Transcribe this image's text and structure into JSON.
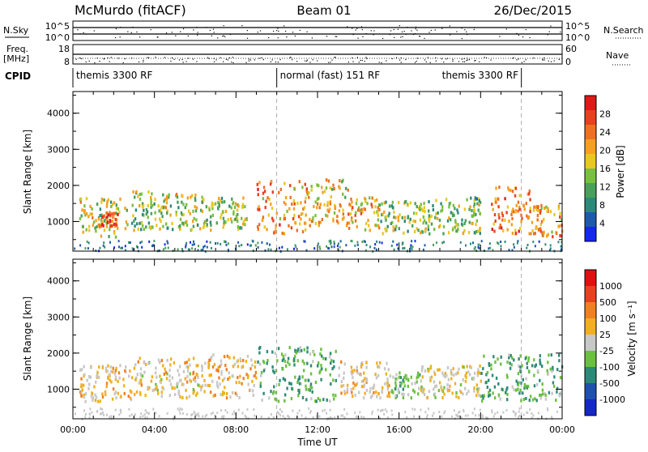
{
  "header": {
    "station": "McMurdo (fitACF)",
    "beam": "Beam 01",
    "date": "26/Dec/2015"
  },
  "top_panel": {
    "left_label": "N.Sky",
    "right_label": "N.Search",
    "tick_top": "10^5",
    "tick_bottom": "10^0",
    "right_tick_top": "10^5",
    "right_tick_bottom": "10^0"
  },
  "freq_panel": {
    "label_line1": "Freq.",
    "label_line2": "[MHz]",
    "tick_top": "18",
    "tick_bottom": "8",
    "right_label": "Nave",
    "right_tick_top": "60",
    "right_tick_bottom": "0"
  },
  "cpid": {
    "label": "CPID",
    "segments": [
      {
        "text": "themis 3300 RF",
        "start_hour": 0,
        "end_hour": 10
      },
      {
        "text": "normal (fast) 151 RF",
        "start_hour": 10,
        "end_hour": 22
      },
      {
        "text": "themis 3300 RF",
        "start_hour": 22,
        "end_hour": 24
      }
    ]
  },
  "colorbars": {
    "power": {
      "label": "Power [dB]",
      "ticks": [
        "4",
        "8",
        "12",
        "16",
        "20",
        "24",
        "28"
      ],
      "colors": [
        "#1428f0",
        "#1e5aaa",
        "#2e8a78",
        "#4aa05a",
        "#78c040",
        "#e8c820",
        "#f5a020",
        "#ee7020",
        "#e84020",
        "#e01818"
      ]
    },
    "velocity": {
      "label": "Velocity [m s⁻¹]",
      "ticks": [
        "1000",
        "500",
        "100",
        "25",
        "-25",
        "-100",
        "-500",
        "-1000"
      ],
      "colors": [
        "#1428c8",
        "#2050b0",
        "#2e8a78",
        "#6cc040",
        "#c8c8c8",
        "#f0b020",
        "#f08020",
        "#e84020",
        "#e01010"
      ]
    }
  },
  "chart_data": [
    {
      "type": "heatmap",
      "title": "",
      "xlabel": "",
      "ylabel": "Slant Range [km]",
      "xlim": [
        0,
        24
      ],
      "ylim": [
        180,
        4600
      ],
      "yticks": [
        "1000",
        "2000",
        "3000",
        "4000"
      ],
      "xticks": [
        "00:00",
        "04:00",
        "08:00",
        "12:00",
        "16:00",
        "20:00",
        "00:00"
      ],
      "zlabel": "Power [dB]",
      "zlim": [
        0,
        32
      ],
      "echo_regions": [
        {
          "t0": 0.3,
          "t1": 2.3,
          "r0": 600,
          "r1": 1700,
          "z": 16
        },
        {
          "t0": 1.2,
          "t1": 2.2,
          "r0": 900,
          "r1": 1300,
          "z": 27
        },
        {
          "t0": 2.5,
          "t1": 4.5,
          "r0": 800,
          "r1": 1900,
          "z": 14
        },
        {
          "t0": 4.5,
          "t1": 6.5,
          "r0": 800,
          "r1": 1800,
          "z": 16
        },
        {
          "t0": 6.5,
          "t1": 8.5,
          "r0": 800,
          "r1": 1700,
          "z": 15
        },
        {
          "t0": 9.0,
          "t1": 11.5,
          "r0": 700,
          "r1": 2200,
          "z": 22
        },
        {
          "t0": 11.5,
          "t1": 13.5,
          "r0": 900,
          "r1": 2200,
          "z": 19
        },
        {
          "t0": 13.5,
          "t1": 15.0,
          "r0": 800,
          "r1": 1700,
          "z": 20
        },
        {
          "t0": 15.0,
          "t1": 17.5,
          "r0": 700,
          "r1": 1600,
          "z": 14
        },
        {
          "t0": 17.5,
          "t1": 20.0,
          "r0": 700,
          "r1": 1700,
          "z": 13
        },
        {
          "t0": 20.5,
          "t1": 22.5,
          "r0": 700,
          "r1": 2000,
          "z": 23
        },
        {
          "t0": 22.5,
          "t1": 24.0,
          "r0": 600,
          "r1": 1500,
          "z": 22
        }
      ]
    },
    {
      "type": "heatmap",
      "title": "",
      "xlabel": "Time UT",
      "ylabel": "Slant Range [km]",
      "xlim": [
        0,
        24
      ],
      "ylim": [
        180,
        4600
      ],
      "yticks": [
        "1000",
        "2000",
        "3000",
        "4000"
      ],
      "xticks": [
        "00:00",
        "04:00",
        "08:00",
        "12:00",
        "16:00",
        "20:00",
        "00:00"
      ],
      "zlabel": "Velocity [m s⁻¹]",
      "zlim": [
        -1000,
        1000
      ],
      "echo_regions": [
        {
          "t0": 0.3,
          "t1": 3.0,
          "r0": 700,
          "r1": 1700,
          "z": 150
        },
        {
          "t0": 3.0,
          "t1": 6.5,
          "r0": 800,
          "r1": 1900,
          "z": 120
        },
        {
          "t0": 6.5,
          "t1": 9.0,
          "r0": 800,
          "r1": 2000,
          "z": 200
        },
        {
          "t0": 9.0,
          "t1": 13.0,
          "r0": 700,
          "r1": 2200,
          "z": -300
        },
        {
          "t0": 13.0,
          "t1": 15.5,
          "r0": 800,
          "r1": 1800,
          "z": 150
        },
        {
          "t0": 15.5,
          "t1": 17.0,
          "r0": 800,
          "r1": 1500,
          "z": -200
        },
        {
          "t0": 17.0,
          "t1": 20.0,
          "r0": 800,
          "r1": 1700,
          "z": 80
        },
        {
          "t0": 20.0,
          "t1": 24.0,
          "r0": 700,
          "r1": 2000,
          "z": -300
        }
      ]
    }
  ]
}
